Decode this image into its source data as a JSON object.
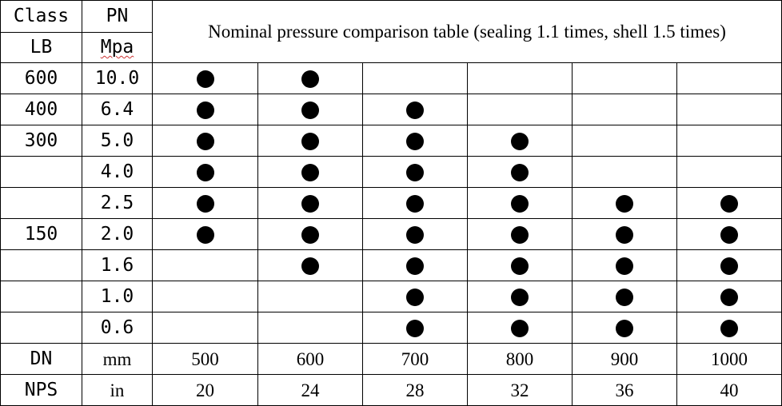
{
  "header": {
    "class_label": "Class",
    "pn_label": "PN",
    "lb_label": "LB",
    "mpa_label": "Mpa",
    "title": "Nominal pressure comparison table (sealing 1.1 times, shell 1.5 times)"
  },
  "rows": [
    {
      "lb": "600",
      "mpa": "10.0",
      "marks": [
        true,
        true,
        false,
        false,
        false,
        false
      ]
    },
    {
      "lb": "400",
      "mpa": "6.4",
      "marks": [
        true,
        true,
        true,
        false,
        false,
        false
      ]
    },
    {
      "lb": "300",
      "mpa": "5.0",
      "marks": [
        true,
        true,
        true,
        true,
        false,
        false
      ]
    },
    {
      "lb": "",
      "mpa": "4.0",
      "marks": [
        true,
        true,
        true,
        true,
        false,
        false
      ]
    },
    {
      "lb": "",
      "mpa": "2.5",
      "marks": [
        true,
        true,
        true,
        true,
        true,
        true
      ]
    },
    {
      "lb": "150",
      "mpa": "2.0",
      "marks": [
        true,
        true,
        true,
        true,
        true,
        true
      ]
    },
    {
      "lb": "",
      "mpa": "1.6",
      "marks": [
        false,
        true,
        true,
        true,
        true,
        true
      ]
    },
    {
      "lb": "",
      "mpa": "1.0",
      "marks": [
        false,
        false,
        true,
        true,
        true,
        true
      ]
    },
    {
      "lb": "",
      "mpa": "0.6",
      "marks": [
        false,
        false,
        true,
        true,
        true,
        true
      ]
    }
  ],
  "dn_row": {
    "label": "DN",
    "unit": "mm",
    "values": [
      "500",
      "600",
      "700",
      "800",
      "900",
      "1000"
    ]
  },
  "nps_row": {
    "label": "NPS",
    "unit": "in",
    "values": [
      "20",
      "24",
      "28",
      "32",
      "36",
      "40"
    ]
  }
}
